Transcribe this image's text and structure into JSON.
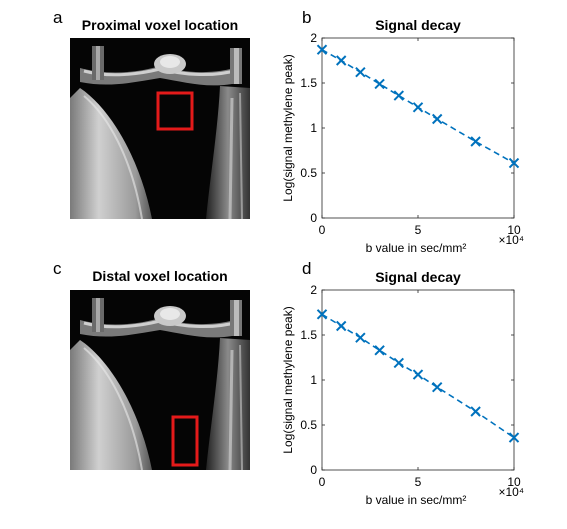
{
  "panels": [
    {
      "letter": "a",
      "title": "Proximal voxel location"
    },
    {
      "letter": "b"
    },
    {
      "letter": "c",
      "title": "Distal voxel location"
    },
    {
      "letter": "d"
    }
  ],
  "colors": {
    "series": "#0072bd",
    "voxel_box": "#e41a1a"
  },
  "chart_data": [
    {
      "type": "scatter",
      "title": "Signal decay",
      "xlabel": "b value in sec/mm²",
      "x_multiplier": "×10⁴",
      "ylabel": "Log(signal methylene peak)",
      "xlim": [
        0,
        10
      ],
      "ylim": [
        0,
        2
      ],
      "x_ticks": [
        0,
        5,
        10
      ],
      "y_ticks": [
        0,
        0.5,
        1,
        1.5,
        2
      ],
      "y_tick_labels": [
        "0",
        "0.5",
        "1",
        "1.5",
        "2"
      ],
      "grid": false,
      "series": [
        {
          "x": [
            0,
            1,
            2,
            3,
            4,
            5,
            6,
            8,
            10
          ],
          "y": [
            1.87,
            1.75,
            1.62,
            1.49,
            1.36,
            1.23,
            1.1,
            0.85,
            0.61
          ],
          "marker": "x",
          "line": "dashed"
        }
      ]
    },
    {
      "type": "scatter",
      "title": "Signal decay",
      "xlabel": "b value in sec/mm²",
      "x_multiplier": "×10⁴",
      "ylabel": "Log(signal methylene peak)",
      "xlim": [
        0,
        10
      ],
      "ylim": [
        0,
        2
      ],
      "x_ticks": [
        0,
        5,
        10
      ],
      "y_ticks": [
        0,
        0.5,
        1,
        1.5,
        2
      ],
      "y_tick_labels": [
        "0",
        "0.5",
        "1",
        "1.5",
        "2"
      ],
      "grid": false,
      "series": [
        {
          "x": [
            0,
            1,
            2,
            3,
            4,
            5,
            6,
            8,
            10
          ],
          "y": [
            1.73,
            1.6,
            1.47,
            1.33,
            1.19,
            1.06,
            0.92,
            0.65,
            0.36
          ],
          "marker": "x",
          "line": "dashed"
        }
      ]
    }
  ]
}
